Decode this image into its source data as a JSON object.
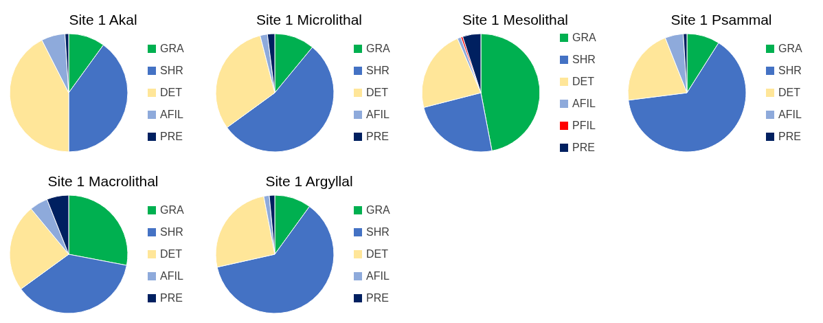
{
  "chart_data": [
    {
      "type": "pie",
      "title": "Site 1 Akal",
      "categories": [
        "GRA",
        "SHR",
        "DET",
        "AFIL",
        "PRE"
      ],
      "values": [
        10,
        40,
        42.5,
        6.5,
        1
      ],
      "colors": [
        "#00b050",
        "#4472c4",
        "#ffe699",
        "#8eaadb",
        "#002060"
      ],
      "legend": "right"
    },
    {
      "type": "pie",
      "title": "Site 1 Microlithal",
      "categories": [
        "GRA",
        "SHR",
        "DET",
        "AFIL",
        "PRE"
      ],
      "values": [
        11,
        54,
        31,
        2,
        2
      ],
      "colors": [
        "#00b050",
        "#4472c4",
        "#ffe699",
        "#8eaadb",
        "#002060"
      ],
      "legend": "right"
    },
    {
      "type": "pie",
      "title": "Site 1 Mesolithal",
      "categories": [
        "GRA",
        "SHR",
        "DET",
        "AFIL",
        "PFIL",
        "PRE"
      ],
      "values": [
        47,
        24,
        22.5,
        1,
        0.5,
        5
      ],
      "colors": [
        "#00b050",
        "#4472c4",
        "#ffe699",
        "#8eaadb",
        "#ff0000",
        "#002060"
      ],
      "legend": "right"
    },
    {
      "type": "pie",
      "title": "Site 1 Psammal",
      "categories": [
        "GRA",
        "SHR",
        "DET",
        "AFIL",
        "PRE"
      ],
      "values": [
        9,
        64,
        21,
        5,
        1
      ],
      "colors": [
        "#00b050",
        "#4472c4",
        "#ffe699",
        "#8eaadb",
        "#002060"
      ],
      "legend": "right"
    },
    {
      "type": "pie",
      "title": "Site 1 Macrolithal",
      "categories": [
        "GRA",
        "SHR",
        "DET",
        "AFIL",
        "PRE"
      ],
      "values": [
        28,
        37,
        24,
        5,
        6
      ],
      "colors": [
        "#00b050",
        "#4472c4",
        "#ffe699",
        "#8eaadb",
        "#002060"
      ],
      "legend": "right"
    },
    {
      "type": "pie",
      "title": "Site 1 Argyllal",
      "categories": [
        "GRA",
        "SHR",
        "DET",
        "AFIL",
        "PRE"
      ],
      "values": [
        10,
        61.5,
        25.5,
        1.5,
        1.5
      ],
      "colors": [
        "#00b050",
        "#4472c4",
        "#ffe699",
        "#8eaadb",
        "#002060"
      ],
      "legend": "right"
    }
  ]
}
